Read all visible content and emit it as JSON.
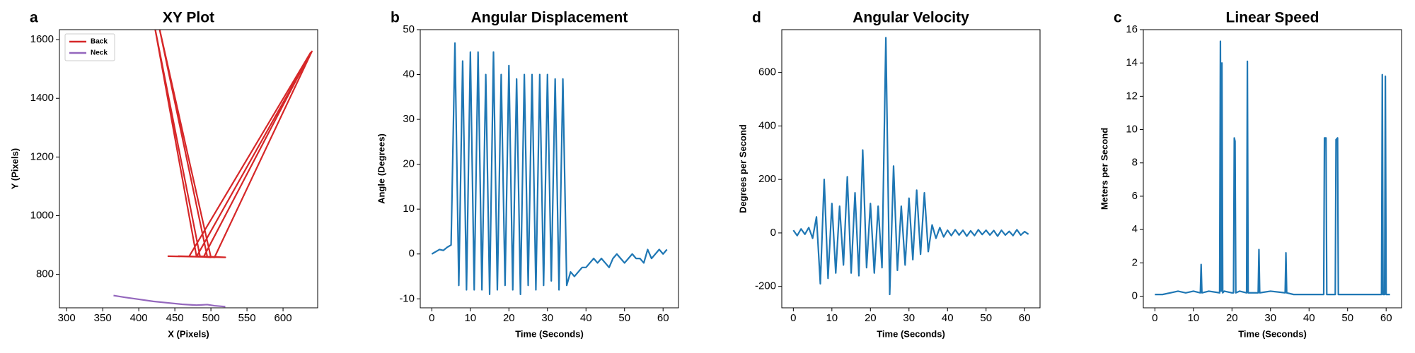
{
  "chart_data": [
    {
      "type": "line",
      "panel_label": "a",
      "title": "XY Plot",
      "x_label": "X (Pixels)",
      "y_label": "Y (Pixels)",
      "xlim": [
        290,
        648
      ],
      "ylim": [
        686,
        1634
      ],
      "xticks": [
        300,
        350,
        400,
        450,
        500,
        550,
        600
      ],
      "yticks": [
        800,
        1000,
        1200,
        1400,
        1600
      ],
      "legend": "upper left",
      "series": [
        {
          "name": "Back",
          "color": "#d62728",
          "x": [
            440,
            520,
            480,
            422,
            485,
            500,
            428,
            495,
            505,
            640,
            480,
            470,
            638,
            490,
            455,
            520
          ],
          "values": [
            862,
            858,
            862,
            1645,
            860,
            858,
            1645,
            860,
            858,
            1560,
            860,
            862,
            1555,
            860,
            862,
            858
          ]
        },
        {
          "name": "Neck",
          "color": "#9467bd",
          "x": [
            365,
            380,
            400,
            420,
            440,
            460,
            480,
            495,
            505,
            520
          ],
          "values": [
            728,
            722,
            715,
            708,
            703,
            698,
            695,
            697,
            693,
            690
          ]
        }
      ]
    },
    {
      "type": "line",
      "panel_label": "b",
      "title": "Angular Displacement",
      "x_label": "Time (Seconds)",
      "y_label": "Angle (Degrees)",
      "xlim": [
        -3,
        64
      ],
      "ylim": [
        -12,
        50
      ],
      "xticks": [
        0,
        10,
        20,
        30,
        40,
        50,
        60
      ],
      "yticks": [
        -10,
        0,
        10,
        20,
        30,
        40,
        50
      ],
      "color": "#1f77b4",
      "x": [
        0,
        1,
        2,
        3,
        4,
        5,
        6,
        7,
        8,
        9,
        10,
        11,
        12,
        13,
        14,
        15,
        16,
        17,
        18,
        19,
        20,
        21,
        22,
        23,
        24,
        25,
        26,
        27,
        28,
        29,
        30,
        31,
        32,
        33,
        34,
        35,
        36,
        37,
        38,
        39,
        40,
        41,
        42,
        43,
        44,
        45,
        46,
        47,
        48,
        49,
        50,
        51,
        52,
        53,
        54,
        55,
        56,
        57,
        58,
        59,
        60,
        61
      ],
      "values": [
        0,
        0.5,
        1,
        0.8,
        1.5,
        2,
        47,
        -7,
        43,
        -8,
        45,
        -8,
        45,
        -8,
        40,
        -9,
        45,
        -8,
        40,
        -7,
        42,
        -8,
        39,
        -9,
        40,
        -7,
        40,
        -8,
        40,
        -7,
        40,
        -6,
        39,
        -8,
        39,
        -7,
        -4,
        -5,
        -4,
        -3,
        -3,
        -2,
        -1,
        -2,
        -1,
        -2,
        -3,
        -1,
        0,
        -1,
        -2,
        -1,
        0,
        -1,
        -1,
        -2,
        1,
        -1,
        0,
        1,
        0,
        1
      ]
    },
    {
      "type": "line",
      "panel_label": "d",
      "title": "Angular Velocity",
      "x_label": "Time (Seconds)",
      "y_label": "Degrees per Second",
      "xlim": [
        -3,
        64
      ],
      "ylim": [
        -280,
        760
      ],
      "xticks": [
        0,
        10,
        20,
        30,
        40,
        50,
        60
      ],
      "yticks": [
        -200,
        0,
        200,
        400,
        600
      ],
      "color": "#1f77b4",
      "x": [
        0,
        1,
        2,
        3,
        4,
        5,
        6,
        7,
        8,
        9,
        10,
        11,
        12,
        13,
        14,
        15,
        16,
        17,
        18,
        19,
        20,
        21,
        22,
        23,
        24,
        25,
        26,
        27,
        28,
        29,
        30,
        31,
        32,
        33,
        34,
        35,
        36,
        37,
        38,
        39,
        40,
        41,
        42,
        43,
        44,
        45,
        46,
        47,
        48,
        49,
        50,
        51,
        52,
        53,
        54,
        55,
        56,
        57,
        58,
        59,
        60,
        61
      ],
      "values": [
        10,
        -10,
        15,
        -5,
        20,
        -20,
        60,
        -190,
        200,
        -170,
        110,
        -150,
        100,
        -120,
        210,
        -150,
        150,
        -160,
        310,
        -130,
        110,
        -150,
        100,
        -130,
        730,
        -230,
        250,
        -140,
        100,
        -120,
        130,
        -100,
        160,
        -80,
        150,
        -70,
        30,
        -20,
        20,
        -15,
        10,
        -10,
        12,
        -8,
        10,
        -12,
        8,
        -10,
        12,
        -6,
        10,
        -8,
        9,
        -12,
        10,
        -8,
        6,
        -10,
        12,
        -8,
        5,
        -5
      ]
    },
    {
      "type": "line",
      "panel_label": "c",
      "title": "Linear Speed",
      "x_label": "Time (Seconds)",
      "y_label": "Meters per Second",
      "xlim": [
        -3,
        64
      ],
      "ylim": [
        -0.7,
        16
      ],
      "xticks": [
        0,
        10,
        20,
        30,
        40,
        50,
        60
      ],
      "yticks": [
        0,
        2,
        4,
        6,
        8,
        10,
        12,
        14,
        16
      ],
      "color": "#1f77b4",
      "x": [
        0,
        2,
        4,
        6,
        8,
        10,
        11.8,
        12,
        12.2,
        14,
        16.8,
        17,
        17.2,
        17.4,
        17.6,
        18,
        20,
        20.4,
        20.6,
        20.8,
        21,
        22,
        23.8,
        24,
        24.2,
        26,
        26.8,
        27,
        27.2,
        30,
        33.8,
        34,
        34.2,
        36,
        40,
        43.8,
        44,
        44.4,
        44.6,
        46,
        46.8,
        47,
        47.4,
        47.6,
        48,
        50,
        55,
        58.8,
        59,
        59.2,
        59.6,
        59.8,
        60,
        61
      ],
      "values": [
        0.1,
        0.1,
        0.2,
        0.3,
        0.2,
        0.3,
        0.2,
        1.9,
        0.2,
        0.3,
        0.2,
        15.3,
        0.3,
        14,
        0.2,
        0.3,
        0.2,
        0.2,
        9.5,
        9.3,
        0.2,
        0.3,
        0.2,
        14.1,
        0.2,
        0.2,
        0.2,
        2.8,
        0.2,
        0.3,
        0.2,
        2.6,
        0.2,
        0.1,
        0.1,
        0.1,
        9.5,
        9.5,
        0.1,
        0.1,
        0.1,
        9.4,
        9.5,
        0.1,
        0.1,
        0.1,
        0.1,
        0.1,
        13.3,
        0.1,
        0.1,
        13.2,
        0.1,
        0.1
      ]
    }
  ]
}
